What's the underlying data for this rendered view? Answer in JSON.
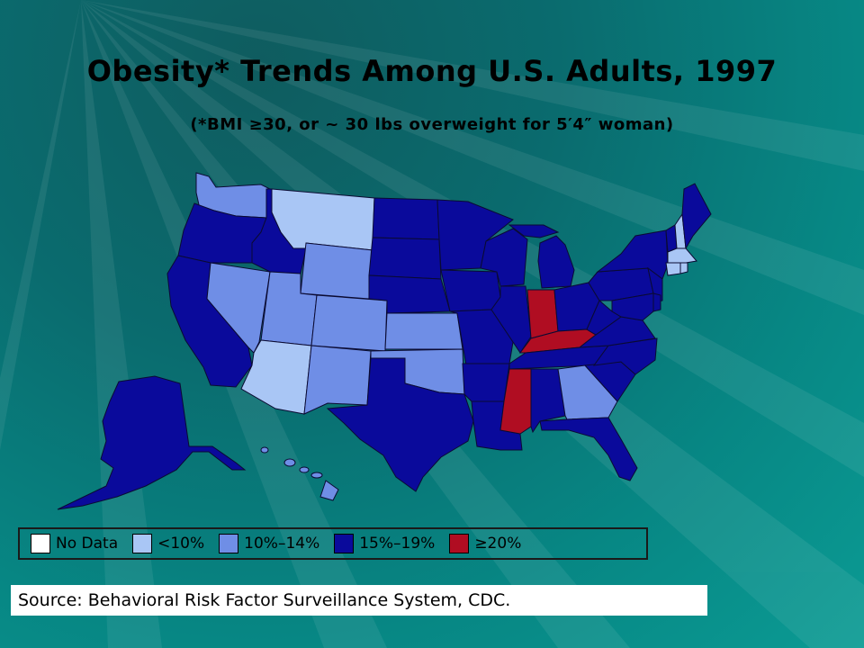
{
  "title": "Obesity* Trends Among U.S. Adults, 1997",
  "subtitle": "(*BMI ≥30, or ~ 30 lbs overweight for 5′4″ woman)",
  "colors": {
    "no_data": "#ffffff",
    "lt10": "#a9c6f5",
    "p10_14": "#6f8ee6",
    "p15_19": "#0a0a9b",
    "ge20": "#b00d22"
  },
  "legend": [
    {
      "label": "No Data",
      "color": "#ffffff"
    },
    {
      "label": "<10%",
      "color": "#a9c6f5"
    },
    {
      "label": "10%–14%",
      "color": "#6f8ee6"
    },
    {
      "label": "15%–19%",
      "color": "#0a0a9b"
    },
    {
      "label": "≥20%",
      "color": "#b00d22"
    }
  ],
  "states": {
    "WA": "10%–14%",
    "OR": "15%–19%",
    "CA": "15%–19%",
    "NV": "10%–14%",
    "ID": "15%–19%",
    "MT": "<10%",
    "WY": "10%–14%",
    "UT": "10%–14%",
    "AZ": "<10%",
    "CO": "10%–14%",
    "NM": "10%–14%",
    "ND": "15%–19%",
    "SD": "15%–19%",
    "NE": "15%–19%",
    "KS": "10%–14%",
    "OK": "10%–14%",
    "TX": "15%–19%",
    "MN": "15%–19%",
    "IA": "15%–19%",
    "MO": "15%–19%",
    "AR": "15%–19%",
    "LA": "15%–19%",
    "WI": "15%–19%",
    "IL": "15%–19%",
    "MI": "15%–19%",
    "IN": "≥20%",
    "OH": "15%–19%",
    "KY": "≥20%",
    "TN": "15%–19%",
    "MS": "≥20%",
    "AL": "15%–19%",
    "GA": "10%–14%",
    "FL": "15%–19%",
    "SC": "15%–19%",
    "NC": "15%–19%",
    "VA": "15%–19%",
    "WV": "15%–19%",
    "PA": "15%–19%",
    "NY": "15%–19%",
    "ME": "15%–19%",
    "NH": "<10%",
    "VT": "15%–19%",
    "MA": "<10%",
    "CT": "<10%",
    "RI": "<10%",
    "NJ": "15%–19%",
    "DE": "15%–19%",
    "MD": "15%–19%",
    "AK": "15%–19%",
    "HI": "10%–14%"
  },
  "source": "Source: Behavioral Risk Factor Surveillance System, CDC."
}
